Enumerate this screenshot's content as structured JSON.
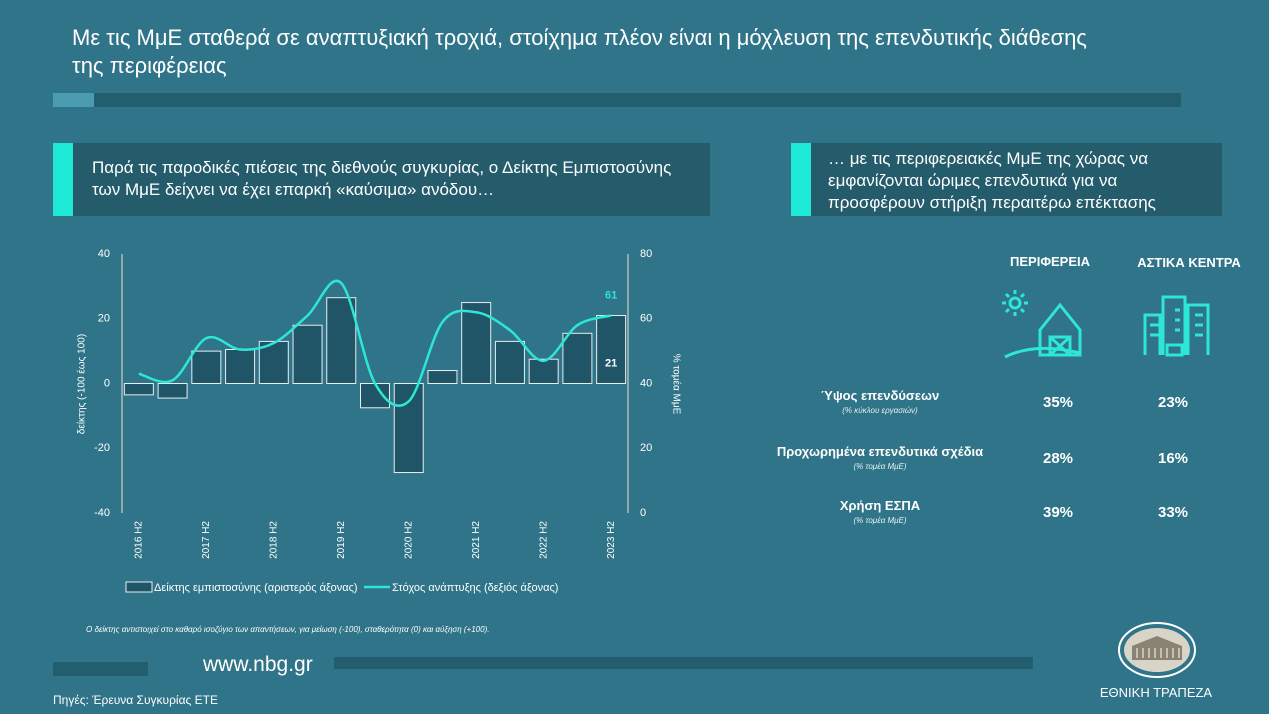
{
  "title": "Με τις ΜμΕ σταθερά σε αναπτυξιακή τροχιά, στοίχημα πλέον είναι η μόχλευση της επενδυτικής διάθεσης της περιφέρειας",
  "left_heading": "Παρά τις παροδικές πιέσεις της διεθνούς συγκυρίας, ο Δείκτης Εμπιστοσύνης των ΜμΕ δείχνει να έχει επαρκή «καύσιμα» ανόδου…",
  "right_heading": "… με τις περιφερειακές ΜμΕ της χώρας να εμφανίζονται ώριμες επενδυτικά για να προσφέρουν στήριξη περαιτέρω επέκτασης",
  "chart_data": {
    "type": "bar",
    "categories": [
      "2016 H2",
      null,
      "2017 H2",
      null,
      "2018 H2",
      null,
      "2019 H2",
      null,
      "2020 H2",
      null,
      "2021 H2",
      null,
      "2022 H2",
      null,
      "2023 H2"
    ],
    "y_label": "δείκτης (-100 έως 100)",
    "y2_label": "% τομέα ΜμΕ",
    "ylim": [
      -40,
      40
    ],
    "yticks": [
      -40,
      -20,
      0,
      20,
      40
    ],
    "y2lim": [
      0,
      80
    ],
    "y2ticks": [
      0,
      20,
      40,
      60,
      80
    ],
    "series": [
      {
        "name": "Δείκτης εμπιστοσύνης (αριστερός άξονας)",
        "type": "bar",
        "color": "#1f5566",
        "values": [
          -3.5,
          -4.5,
          10,
          10.5,
          13,
          18,
          26.5,
          -7.5,
          -27.5,
          4,
          25,
          13,
          7.5,
          15.5,
          21
        ]
      },
      {
        "name": "Στόχος ανάπτυξης (δεξιός άξονας)",
        "type": "line",
        "axis": "y2",
        "color": "#2ee6d6",
        "values": [
          43,
          41,
          54,
          50.5,
          52.5,
          61,
          71,
          40,
          34.5,
          59,
          62,
          56.5,
          47,
          58,
          61
        ]
      }
    ]
  },
  "footnote": "Ο δείκτης αντιστοιχεί στο καθαρό ισοζύγιο των απαντήσεων, για μείωση (-100), σταθερότητα (0) και αύξηση (+100).",
  "table": {
    "columns": [
      "ΠΕΡΙΦΕΡΕΙΑ",
      "ΑΣΤΙΚΑ ΚΕΝΤΡΑ"
    ],
    "rows": [
      {
        "label": "Ύψος επενδύσεων",
        "note": "(% κύκλου εργασιών)",
        "values": [
          "35%",
          "23%"
        ]
      },
      {
        "label": "Προχωρημένα επενδυτικά σχέδια",
        "note": "(% τομέα ΜμΕ)",
        "values": [
          "28%",
          "16%"
        ]
      },
      {
        "label": "Χρήση ΕΣΠΑ",
        "note": "(% τομέα ΜμΕ)",
        "values": [
          "39%",
          "33%"
        ]
      }
    ]
  },
  "website": "www.nbg.gr",
  "source": "Πηγές: Έρευνα Συγκυρίας ΕΤΕ",
  "logo_text": "ΕΘΝΙΚΗ ΤΡΑΠΕΖΑ"
}
